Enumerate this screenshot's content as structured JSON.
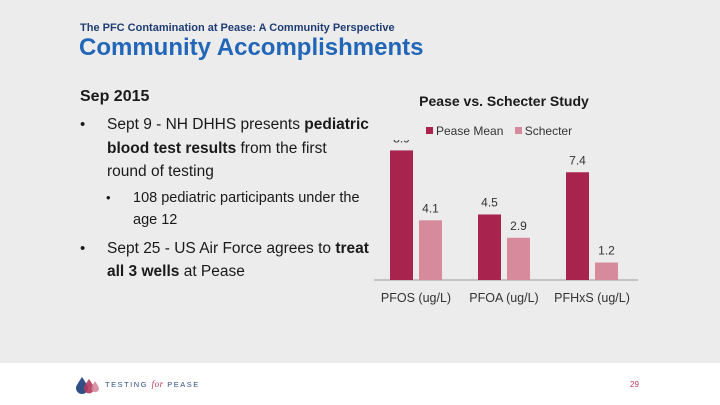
{
  "header": {
    "supertitle": "The PFC Contamination at Pease: A Community Perspective",
    "title": "Community Accomplishments"
  },
  "content": {
    "heading": "Sep 2015",
    "bullet1": {
      "pre": "Sept 9 - NH DHHS presents ",
      "bold": "pediatric blood test results",
      "post": " from the first round of testing"
    },
    "sub_bullet1": "108 pediatric participants under the age 12",
    "bullet2": {
      "pre": "Sept 25 - US Air Force agrees to ",
      "bold": "treat all 3 wells",
      "post": " at Pease"
    }
  },
  "chart_data": {
    "type": "bar",
    "title": "Pease vs. Schecter Study",
    "categories": [
      "PFOS  (ug/L)",
      "PFOA (ug/L)",
      "PFHxS (ug/L)"
    ],
    "series": [
      {
        "name": "Pease Mean",
        "values": [
          8.9,
          4.5,
          7.4
        ],
        "color": "#a8234e"
      },
      {
        "name": "Schecter",
        "values": [
          4.1,
          2.9,
          1.2
        ],
        "color": "#d68a9c"
      }
    ],
    "data_labels": true,
    "ylim": [
      0,
      10
    ],
    "grid": false,
    "legend": "top"
  },
  "footer": {
    "brand_pre": "TESTING ",
    "brand_mid": "for",
    "brand_post": " PEASE",
    "page_number": "29"
  },
  "colors": {
    "title_blue": "#2266b8",
    "supertitle_navy": "#1f3d73",
    "accent_red": "#a8234e",
    "accent_pink": "#d68a9c"
  }
}
